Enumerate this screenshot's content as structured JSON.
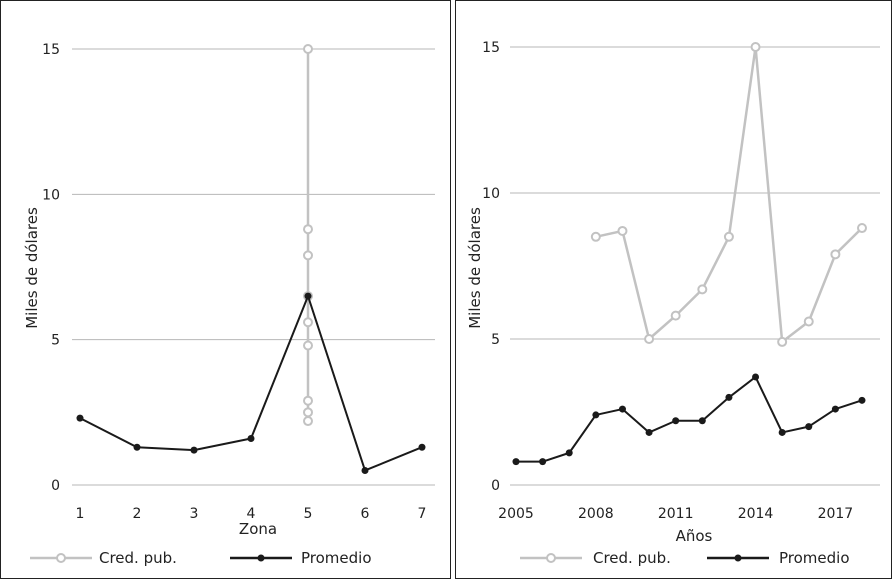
{
  "colors": {
    "cred": "#c2c2c2",
    "prom": "#1a1a1a",
    "grid": "#b7b7b7"
  },
  "chart_data": [
    {
      "type": "line",
      "xlabel": "Zona",
      "ylabel": "Miles de dólares",
      "ylim": [
        0,
        15
      ],
      "yticks": [
        0,
        5,
        10,
        15
      ],
      "xlim": [
        1,
        7
      ],
      "xticks": [
        1,
        2,
        3,
        4,
        5,
        6,
        7
      ],
      "grid": true,
      "legend": "bottom",
      "series": [
        {
          "name": "Cred. pub.",
          "x": [
            5,
            5,
            5,
            5,
            5,
            5,
            5,
            5,
            5
          ],
          "y": [
            15,
            8.8,
            7.9,
            6.5,
            5.6,
            4.8,
            2.9,
            2.5,
            2.2
          ]
        },
        {
          "name": "Promedio",
          "x": [
            1,
            2,
            3,
            4,
            5,
            6,
            7
          ],
          "y": [
            2.3,
            1.3,
            1.2,
            1.6,
            6.5,
            0.5,
            1.3
          ]
        }
      ]
    },
    {
      "type": "line",
      "xlabel": "Años",
      "ylabel": "Miles de dólares",
      "ylim": [
        0,
        15
      ],
      "yticks": [
        0,
        5,
        10,
        15
      ],
      "xlim": [
        2005,
        2018
      ],
      "xticks": [
        2005,
        2008,
        2011,
        2014,
        2017
      ],
      "grid": true,
      "legend": "bottom",
      "series": [
        {
          "name": "Cred. pub.",
          "x": [
            2008,
            2009,
            2010,
            2011,
            2012,
            2013,
            2014,
            2015,
            2016,
            2017,
            2018
          ],
          "y": [
            8.5,
            8.7,
            5.0,
            5.8,
            6.7,
            8.5,
            15.0,
            4.9,
            5.6,
            7.9,
            8.8
          ]
        },
        {
          "name": "Promedio",
          "x": [
            2005,
            2006,
            2007,
            2008,
            2009,
            2010,
            2011,
            2012,
            2013,
            2014,
            2015,
            2016,
            2017,
            2018
          ],
          "y": [
            0.8,
            0.8,
            1.1,
            2.4,
            2.6,
            1.8,
            2.2,
            2.2,
            3.0,
            3.7,
            1.8,
            2.0,
            2.6,
            2.9
          ]
        }
      ]
    }
  ]
}
